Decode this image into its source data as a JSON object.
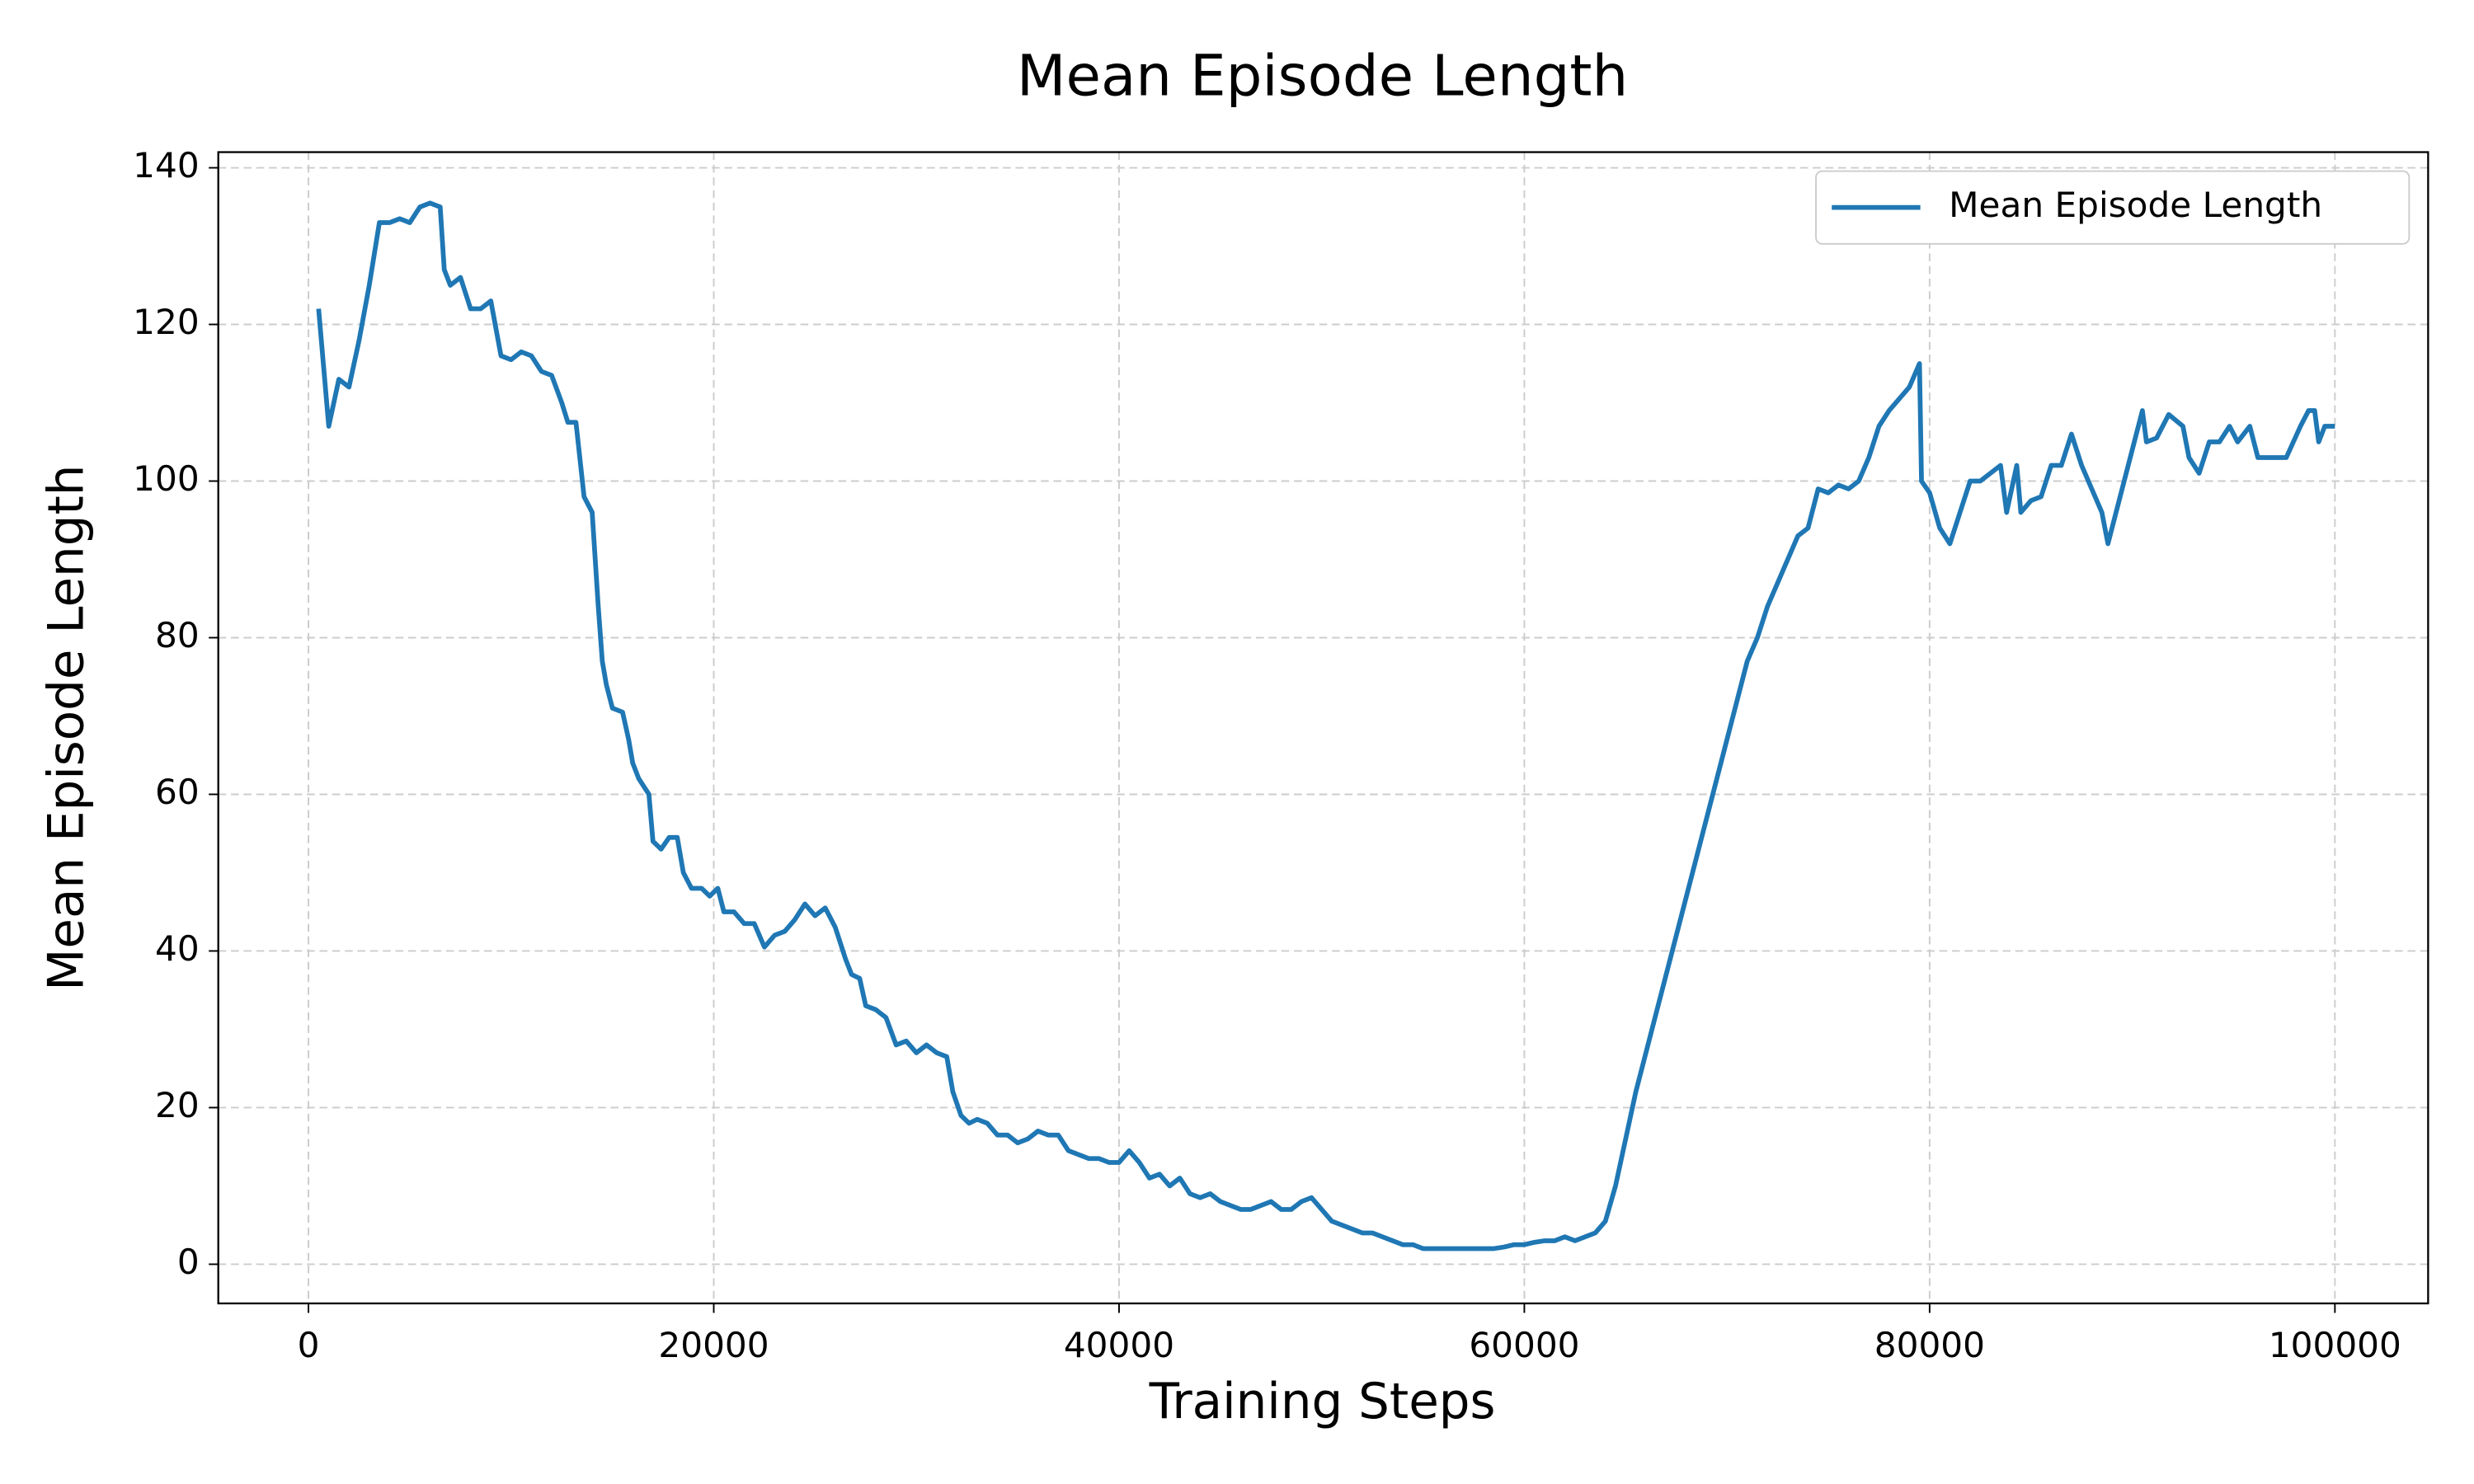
{
  "chart_data": {
    "type": "line",
    "title": "Mean Episode Length",
    "xlabel": "Training Steps",
    "ylabel": "Mean Episode Length",
    "x": [
      500,
      1000,
      1500,
      2000,
      2500,
      3000,
      3500,
      4000,
      4500,
      5000,
      5500,
      6000,
      6500,
      6700,
      7000,
      7500,
      8000,
      8500,
      9000,
      9500,
      10000,
      10500,
      11000,
      11500,
      12000,
      12500,
      12800,
      13200,
      13600,
      14000,
      14300,
      14500,
      14700,
      15000,
      15500,
      15800,
      16000,
      16300,
      16800,
      17000,
      17400,
      17800,
      18200,
      18500,
      18900,
      19400,
      19800,
      20200,
      20500,
      21000,
      21500,
      22000,
      22500,
      23000,
      23500,
      24000,
      24500,
      25000,
      25500,
      26000,
      26500,
      26800,
      27200,
      27500,
      28000,
      28500,
      29000,
      29500,
      30000,
      30500,
      31000,
      31500,
      31800,
      32200,
      32600,
      33000,
      33500,
      34000,
      34500,
      35000,
      35500,
      36000,
      36500,
      37000,
      37500,
      38000,
      38500,
      39000,
      39500,
      40000,
      40500,
      41000,
      41500,
      42000,
      42500,
      43000,
      43500,
      44000,
      44500,
      45000,
      45500,
      46000,
      46500,
      47000,
      47500,
      48000,
      48500,
      49000,
      49500,
      50000,
      50500,
      51000,
      51500,
      52000,
      52500,
      53000,
      53500,
      54000,
      54500,
      55000,
      55500,
      56000,
      56500,
      57000,
      57500,
      58000,
      58500,
      59000,
      59500,
      60000,
      60500,
      61000,
      61500,
      62000,
      62500,
      63000,
      63500,
      64000,
      64500,
      65000,
      65500,
      66000,
      66500,
      67000,
      67500,
      68000,
      68500,
      69000,
      69500,
      70000,
      70500,
      71000,
      71500,
      72000,
      72500,
      73000,
      73500,
      74000,
      74500,
      75000,
      75500,
      76000,
      76500,
      77000,
      77500,
      78000,
      78500,
      79000,
      79500,
      79600,
      80000,
      80500,
      81000,
      81500,
      82000,
      82500,
      83000,
      83500,
      83800,
      84300,
      84500,
      85000,
      85500,
      86000,
      86500,
      87000,
      87500,
      88000,
      88500,
      88800,
      89500,
      90000,
      90500,
      90700,
      91200,
      91800,
      92500,
      92800,
      93300,
      93800,
      94300,
      94800,
      95200,
      95800,
      96200,
      97000,
      97600,
      98300,
      98700,
      99000,
      99200,
      99500,
      100000
    ],
    "series": [
      {
        "name": "Mean Episode Length",
        "color": "#1f77b4",
        "values": [
          122,
          107,
          113,
          112,
          118,
          125,
          133,
          133,
          133.5,
          133,
          135,
          135.5,
          135,
          127,
          125,
          126,
          122,
          122,
          123,
          116,
          115.5,
          116.5,
          116,
          114,
          113.5,
          110,
          107.5,
          107.5,
          98,
          96,
          84,
          77,
          74,
          71,
          70.5,
          67,
          64,
          62,
          60,
          54,
          53,
          54.5,
          54.5,
          50,
          48,
          48,
          47,
          48,
          45,
          45,
          43.5,
          43.5,
          40.5,
          42,
          42.5,
          44,
          46,
          44.5,
          45.5,
          43,
          39,
          37,
          36.5,
          33,
          32.5,
          31.5,
          28,
          28.5,
          27,
          28,
          27,
          26.5,
          22,
          19,
          18,
          18.5,
          18,
          16.5,
          16.5,
          15.5,
          16,
          17,
          16.5,
          16.5,
          14.5,
          14,
          13.5,
          13.5,
          13,
          13,
          14.5,
          13,
          11,
          11.5,
          10,
          11,
          9,
          8.5,
          9,
          8,
          7.5,
          7,
          7,
          7.5,
          8,
          7,
          7,
          8,
          8.5,
          7,
          5.5,
          5,
          4.5,
          4,
          4,
          3.5,
          3,
          2.5,
          2.5,
          2,
          2,
          2,
          2,
          2,
          2,
          2,
          2,
          2.2,
          2.5,
          2.5,
          2.8,
          3,
          3,
          3.5,
          3,
          3.5,
          4,
          5.5,
          10,
          16,
          22,
          27,
          32,
          37,
          42,
          47,
          52,
          57,
          62,
          67,
          72,
          77,
          80,
          84,
          87,
          90,
          93,
          94,
          99,
          98.5,
          99.5,
          99,
          100,
          103,
          107,
          109,
          110.5,
          112,
          115,
          100,
          98.5,
          94,
          92,
          96,
          100,
          100,
          101,
          102,
          96,
          102,
          96,
          97.5,
          98,
          102,
          102,
          106,
          102,
          99,
          96,
          92,
          99,
          104,
          109,
          105,
          105.5,
          108.5,
          107,
          103,
          101,
          105,
          105,
          107,
          105,
          107,
          103,
          103,
          103,
          107,
          109,
          109,
          105,
          107,
          107
        ]
      }
    ],
    "xlim": [
      -4450,
      104600
    ],
    "ylim": [
      -5,
      142
    ],
    "xticks": [
      0,
      20000,
      40000,
      60000,
      80000,
      100000
    ],
    "yticks": [
      0,
      20,
      40,
      60,
      80,
      100,
      120,
      140
    ],
    "grid": true,
    "legend": "upper right"
  }
}
